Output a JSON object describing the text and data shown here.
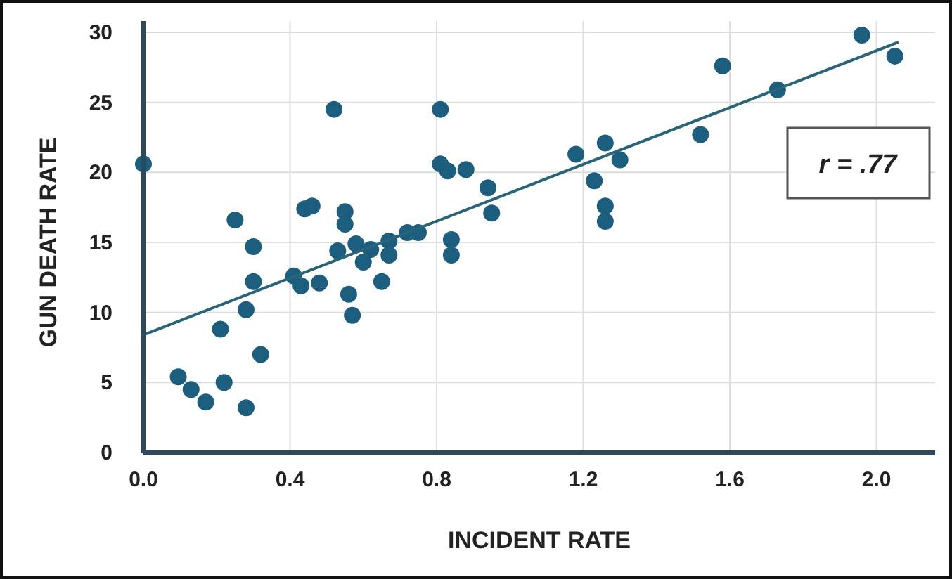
{
  "chart_data": {
    "type": "scatter",
    "xlabel": "INCIDENT RATE",
    "ylabel": "GUN DEATH RATE",
    "xlim": [
      0,
      2.16
    ],
    "ylim": [
      0,
      30
    ],
    "xticks": [
      {
        "value": 0,
        "label": "0.0"
      },
      0.4,
      0.8,
      1.2,
      1.6,
      {
        "value": 2,
        "label": "2.0"
      }
    ],
    "yticks": [
      0,
      5,
      10,
      15,
      20,
      25,
      30
    ],
    "grid": true,
    "marker": "circle",
    "annotations": [
      "r = .77"
    ],
    "series": [
      {
        "color": "#1b5e7e",
        "x": [
          0.0,
          0.52,
          0.81,
          0.81,
          0.83,
          0.88,
          0.94,
          0.95,
          0.25,
          0.44,
          0.46,
          0.55,
          0.55,
          0.3,
          0.53,
          0.58,
          0.62,
          0.6,
          0.67,
          0.67,
          0.72,
          0.75,
          0.84,
          0.84,
          0.3,
          0.41,
          0.43,
          0.48,
          0.65,
          0.56,
          0.57,
          0.28,
          0.21,
          0.32,
          0.095,
          0.13,
          0.17,
          0.22,
          0.28,
          1.18,
          1.26,
          1.3,
          1.23,
          1.26,
          1.26,
          1.52,
          1.58,
          1.73,
          1.96,
          2.05
        ],
        "values": [
          20.6,
          24.5,
          24.5,
          20.6,
          20.1,
          20.2,
          18.9,
          17.1,
          16.6,
          17.4,
          17.6,
          17.2,
          16.3,
          14.7,
          14.4,
          14.9,
          14.5,
          13.6,
          15.1,
          14.1,
          15.7,
          15.7,
          15.2,
          14.1,
          12.2,
          12.6,
          11.9,
          12.1,
          12.2,
          11.3,
          9.8,
          10.2,
          8.8,
          7.0,
          5.4,
          4.5,
          3.6,
          5.0,
          3.2,
          21.3,
          22.1,
          20.9,
          19.4,
          17.6,
          16.5,
          22.7,
          27.6,
          25.9,
          29.8,
          28.3
        ]
      },
      {
        "type": "line",
        "color": "#2a6478",
        "x": [
          0,
          2.06
        ],
        "values": [
          8.4,
          29.3
        ],
        "marker": "none"
      }
    ]
  }
}
